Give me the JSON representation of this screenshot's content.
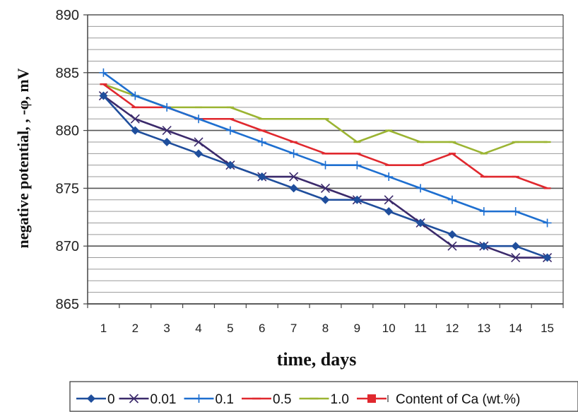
{
  "chart_data": {
    "type": "line",
    "title": "",
    "xlabel": "time, days",
    "ylabel": "negative potential, , -φ, mV",
    "ylim": [
      865,
      890
    ],
    "y_ticks": [
      865,
      870,
      875,
      880,
      885,
      890
    ],
    "x": [
      1,
      2,
      3,
      4,
      5,
      6,
      7,
      8,
      9,
      10,
      11,
      12,
      13,
      14,
      15
    ],
    "grid": "horizontal minor + major",
    "legend": {
      "placement": "bottom",
      "title": "Content of Ca (wt.%)"
    },
    "series": [
      {
        "name": "0",
        "color": "#1f4e9c",
        "marker": "diamond",
        "values": [
          883,
          880,
          879,
          878,
          877,
          876,
          875,
          874,
          874,
          873,
          872,
          871,
          870,
          870,
          869
        ]
      },
      {
        "name": "0.01",
        "color": "#3b2a6b",
        "marker": "x",
        "values": [
          883,
          881,
          880,
          879,
          877,
          876,
          876,
          875,
          874,
          874,
          872,
          870,
          870,
          869,
          869
        ]
      },
      {
        "name": "0.1",
        "color": "#1e6fd0",
        "marker": "plus",
        "values": [
          885,
          883,
          882,
          881,
          880,
          879,
          878,
          877,
          877,
          876,
          875,
          874,
          873,
          873,
          872
        ]
      },
      {
        "name": "0.5",
        "color": "#e0282e",
        "marker": "dash",
        "values": [
          884,
          882,
          882,
          881,
          881,
          880,
          879,
          878,
          878,
          877,
          877,
          878,
          876,
          876,
          875
        ]
      },
      {
        "name": "1.0",
        "color": "#9bb432",
        "marker": "dash",
        "values": [
          884,
          883,
          882,
          882,
          882,
          881,
          881,
          881,
          879,
          880,
          879,
          879,
          878,
          879,
          879
        ]
      }
    ],
    "legend_extra_marker": {
      "color": "#e0282e",
      "marker": "square"
    }
  }
}
